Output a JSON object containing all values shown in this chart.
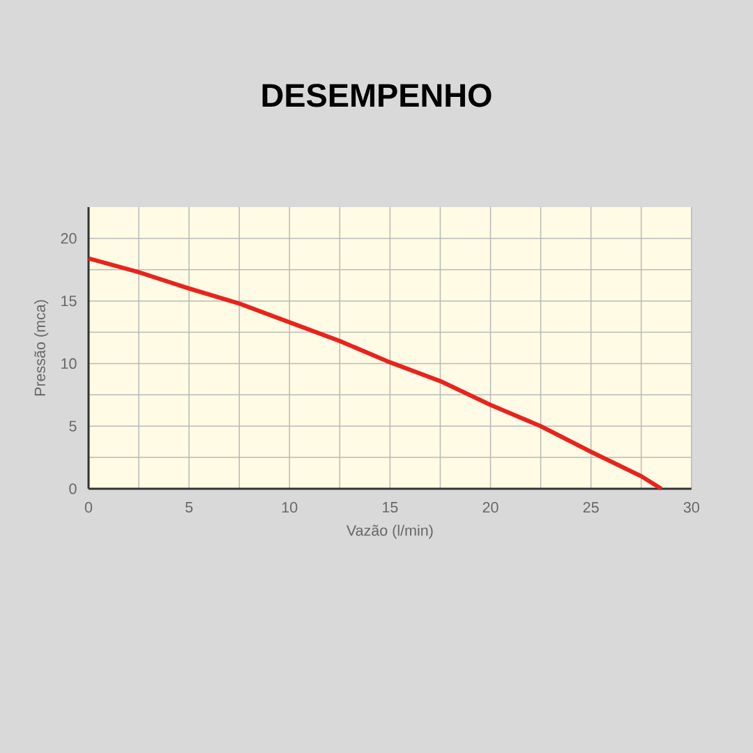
{
  "chart_data": {
    "type": "line",
    "title": "DESEMPENHO",
    "xlabel": "Vazão  (l/min)",
    "ylabel": "Pressão (mca)",
    "x": [
      0,
      2.5,
      5,
      7.5,
      10,
      12.5,
      15,
      17.5,
      20,
      22.5,
      25,
      27.5,
      28.5
    ],
    "series": [
      {
        "color": "#e8231e",
        "values": [
          18.4,
          17.3,
          16.0,
          14.8,
          13.3,
          11.8,
          10.1,
          8.6,
          6.7,
          5.0,
          2.95,
          1.0,
          0
        ]
      }
    ],
    "xlim": [
      0,
      30
    ],
    "ylim": [
      0,
      22.5
    ],
    "xticks": [
      0,
      5,
      10,
      15,
      20,
      25,
      30
    ],
    "yticks": [
      0,
      5,
      10,
      15,
      20
    ],
    "grid": true,
    "marker": "none",
    "line_style": "solid"
  }
}
